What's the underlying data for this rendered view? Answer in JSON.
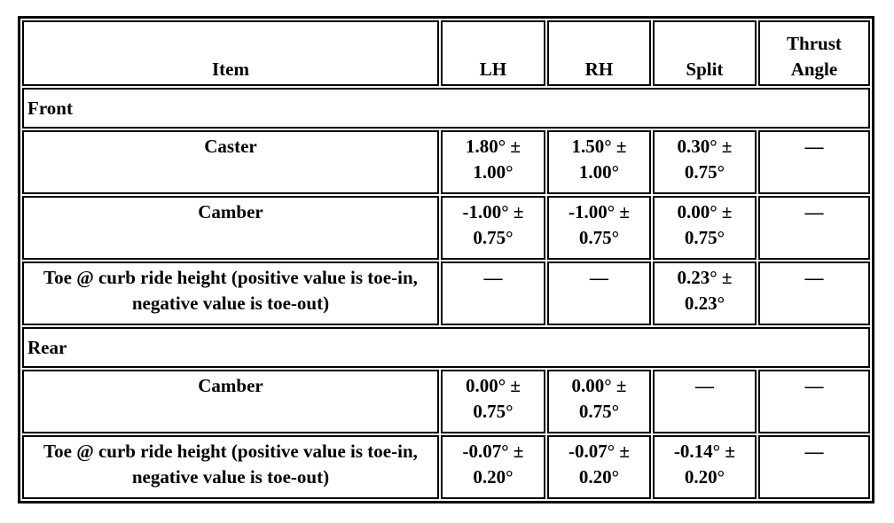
{
  "table": {
    "header": [
      "Item",
      "LH",
      "RH",
      "Split",
      "Thrust Angle"
    ],
    "rows": [
      [
        "Front"
      ],
      [
        "Caster",
        "1.80° ± 1.00°",
        "1.50° ± 1.00°",
        "0.30° ± 0.75°",
        "—"
      ],
      [
        "Camber",
        "-1.00° ± 0.75°",
        "-1.00° ± 0.75°",
        "0.00° ± 0.75°",
        "—"
      ],
      [
        "Toe @ curb ride height (positive value is toe-in, negative value is toe-out)",
        "—",
        "—",
        "0.23° ± 0.23°",
        "—"
      ],
      [
        "Rear"
      ],
      [
        "Camber",
        "0.00° ± 0.75°",
        "0.00° ± 0.75°",
        "—",
        "—"
      ],
      [
        "Toe @ curb ride height (positive value is toe-in, negative value is toe-out)",
        "-0.07° ± 0.20°",
        "-0.07° ± 0.20°",
        "-0.14° ± 0.20°",
        "—"
      ]
    ]
  }
}
